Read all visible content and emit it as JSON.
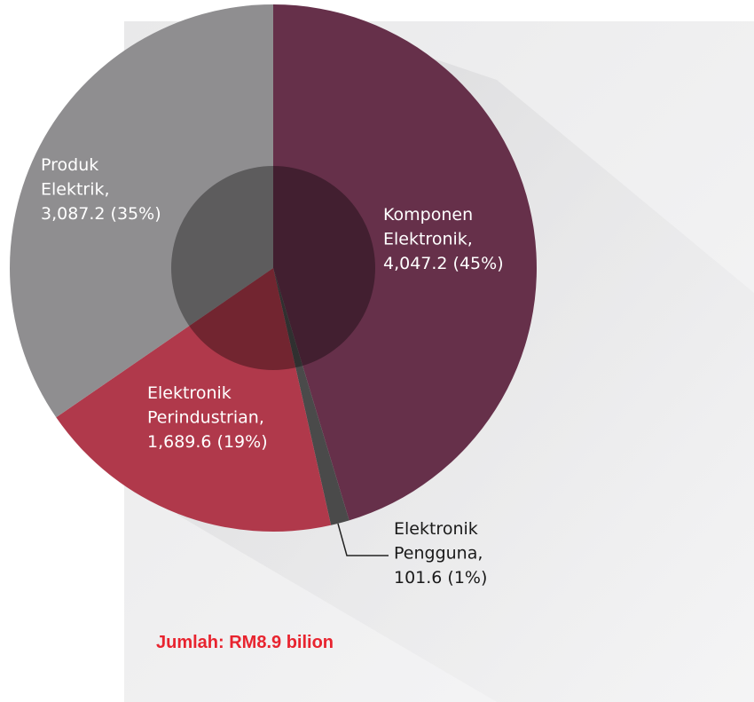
{
  "chart_data": {
    "type": "pie",
    "slices": [
      {
        "label_lines": [
          "Komponen",
          "Elektronik,",
          "4,047.2 (45%)"
        ],
        "value": 4047.2,
        "percent": 45,
        "color": "#66304a",
        "text_color": "#ffffff"
      },
      {
        "label_lines": [
          "Elektronik",
          "Pengguna,",
          "101.6 (1%)"
        ],
        "value": 101.6,
        "percent": 1,
        "color": "#4a4a4a",
        "text_color": "#1a1a1a"
      },
      {
        "label_lines": [
          "Elektronik",
          "Perindustrian,",
          "1,689.6 (19%)"
        ],
        "value": 1689.6,
        "percent": 19,
        "color": "#b0394b",
        "text_color": "#ffffff"
      },
      {
        "label_lines": [
          "Produk",
          "Elektrik,",
          "3,087.2 (35%)"
        ],
        "value": 3087.2,
        "percent": 35,
        "color": "#8f8e90",
        "text_color": "#ffffff"
      }
    ],
    "total_label": "Jumlah: RM8.9 bilion",
    "total_color": "#e8242f",
    "inner_overlay_color": "#000000",
    "background_color": "#efefef"
  }
}
